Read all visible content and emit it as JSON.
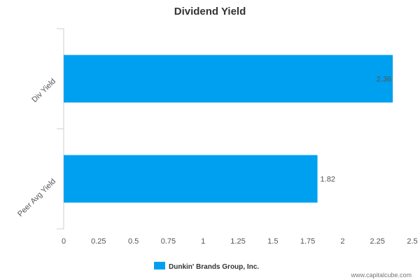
{
  "chart_data": {
    "type": "bar",
    "orientation": "horizontal",
    "title": "Dividend Yield",
    "categories": [
      "Div Yield",
      "Peer Avg Yield"
    ],
    "series": [
      {
        "name": "Dunkin' Brands Group, Inc.",
        "values": [
          2.36,
          1.82
        ],
        "labels": [
          "2.36",
          "1.82"
        ],
        "color": "#00a0f0"
      }
    ],
    "xlim": [
      0,
      2.5
    ],
    "ticks": [
      0,
      0.25,
      0.5,
      0.75,
      1,
      1.25,
      1.5,
      1.75,
      2,
      2.25,
      2.5
    ],
    "tick_labels": [
      "0",
      "0.25",
      "0.5",
      "0.75",
      "1",
      "1.25",
      "1.5",
      "1.75",
      "2",
      "2.25",
      "2.5"
    ],
    "grid": false,
    "legend_position": "bottom"
  },
  "watermark": "www.capitalcube.com"
}
